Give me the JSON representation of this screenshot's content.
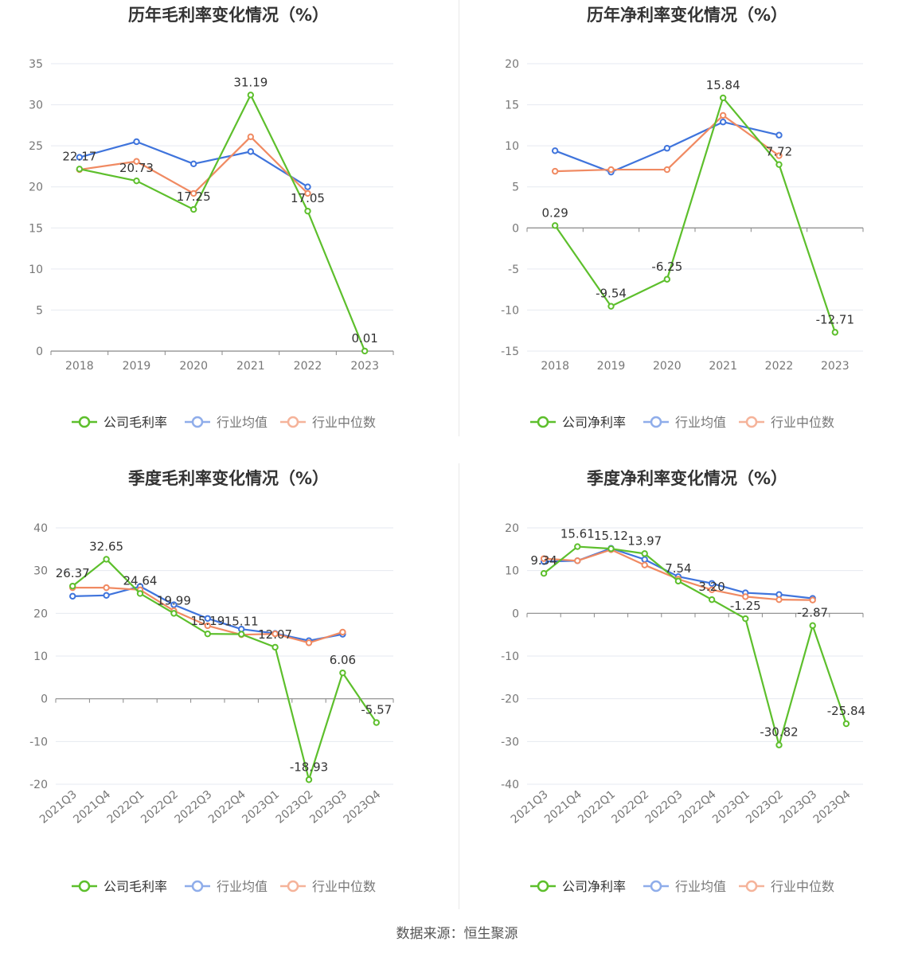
{
  "footer": "数据来源：恒生聚源",
  "colors": {
    "company": "#5dbf2c",
    "avg": "#3f74dc",
    "median": "#f08a62"
  },
  "chart_data": [
    {
      "type": "line",
      "title": "历年毛利率变化情况（%）",
      "categories": [
        "2018",
        "2019",
        "2020",
        "2021",
        "2022",
        "2023"
      ],
      "yticks": [
        0,
        5,
        10,
        15,
        20,
        25,
        30,
        35
      ],
      "ylim": [
        0,
        35
      ],
      "series": [
        {
          "name": "公司毛利率",
          "values": [
            22.17,
            20.73,
            17.25,
            31.19,
            17.05,
            0.01
          ],
          "labels": [
            "22.17",
            "20.73",
            "17.25",
            "31.19",
            "17.05",
            "0.01"
          ]
        },
        {
          "name": "行业均值",
          "values": [
            23.6,
            25.5,
            22.8,
            24.3,
            20.0,
            null
          ]
        },
        {
          "name": "行业中位数",
          "values": [
            22.1,
            23.1,
            19.2,
            26.1,
            19.2,
            null
          ]
        }
      ],
      "legend": "bottom-center"
    },
    {
      "type": "line",
      "title": "历年净利率变化情况（%）",
      "categories": [
        "2018",
        "2019",
        "2020",
        "2021",
        "2022",
        "2023"
      ],
      "yticks": [
        -15,
        -10,
        -5,
        0,
        5,
        10,
        15,
        20
      ],
      "ylim": [
        -15,
        20
      ],
      "series": [
        {
          "name": "公司净利率",
          "values": [
            0.29,
            -9.54,
            -6.25,
            15.84,
            7.72,
            -12.71
          ],
          "labels": [
            "0.29",
            "-9.54",
            "-6.25",
            "15.84",
            "7.72",
            "-12.71"
          ]
        },
        {
          "name": "行业均值",
          "values": [
            9.4,
            6.8,
            9.7,
            12.9,
            11.3,
            null
          ]
        },
        {
          "name": "行业中位数",
          "values": [
            6.9,
            7.1,
            7.1,
            13.7,
            8.8,
            null
          ]
        }
      ],
      "legend": "bottom-center"
    },
    {
      "type": "line",
      "title": "季度毛利率变化情况（%）",
      "categories": [
        "2021Q3",
        "2021Q4",
        "2022Q1",
        "2022Q2",
        "2022Q3",
        "2022Q4",
        "2023Q1",
        "2023Q2",
        "2023Q3",
        "2023Q4"
      ],
      "yticks": [
        -20,
        -10,
        0,
        10,
        20,
        30,
        40
      ],
      "ylim": [
        -20,
        40
      ],
      "series": [
        {
          "name": "公司毛利率",
          "values": [
            26.37,
            32.65,
            24.64,
            19.99,
            15.19,
            15.11,
            12.07,
            -18.93,
            6.06,
            -5.57
          ],
          "labels": [
            "26.37",
            "32.65",
            "24.64",
            "19.99",
            "15.19",
            "15.11",
            "12.07",
            "-18.93",
            "6.06",
            "-5.57"
          ]
        },
        {
          "name": "行业均值",
          "values": [
            24.0,
            24.2,
            26.3,
            22.0,
            18.8,
            16.3,
            15.3,
            13.6,
            15.1,
            null
          ]
        },
        {
          "name": "行业中位数",
          "values": [
            26.0,
            26.0,
            25.5,
            20.6,
            17.1,
            15.0,
            15.2,
            13.1,
            15.6,
            null
          ]
        }
      ],
      "legend": "bottom-center"
    },
    {
      "type": "line",
      "title": "季度净利率变化情况（%）",
      "categories": [
        "2021Q3",
        "2021Q4",
        "2022Q1",
        "2022Q2",
        "2022Q3",
        "2022Q4",
        "2023Q1",
        "2023Q2",
        "2023Q3",
        "2023Q4"
      ],
      "yticks": [
        -40,
        -30,
        -20,
        -10,
        0,
        10,
        20
      ],
      "ylim": [
        -40,
        20
      ],
      "series": [
        {
          "name": "公司净利率",
          "values": [
            9.34,
            15.61,
            15.12,
            13.97,
            7.54,
            3.2,
            -1.25,
            -30.82,
            -2.87,
            -25.84
          ],
          "labels": [
            "9.34",
            "15.61",
            "15.12",
            "13.97",
            "7.54",
            "3.20",
            "-1.25",
            "-30.82",
            "-2.87",
            "-25.84"
          ]
        },
        {
          "name": "行业均值",
          "values": [
            12.1,
            12.3,
            15.2,
            12.6,
            8.6,
            7.0,
            4.8,
            4.4,
            3.5,
            null
          ]
        },
        {
          "name": "行业中位数",
          "values": [
            12.8,
            12.3,
            14.9,
            11.3,
            8.0,
            5.5,
            3.9,
            3.2,
            3.1,
            null
          ]
        }
      ],
      "legend": "bottom-center"
    }
  ]
}
